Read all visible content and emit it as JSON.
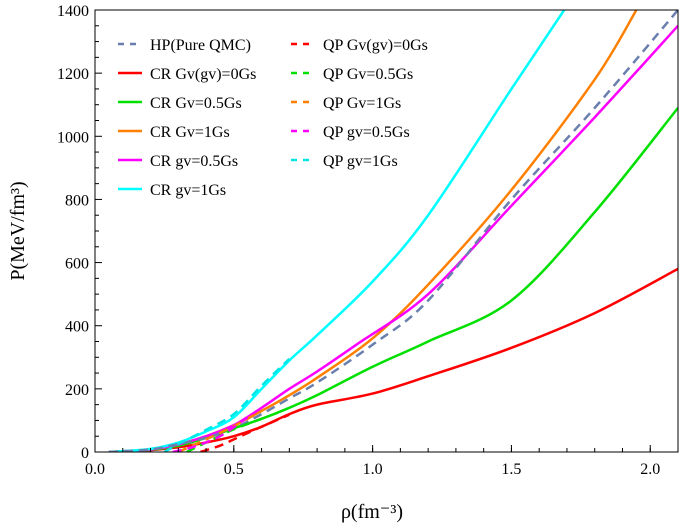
{
  "chart_data": {
    "type": "line",
    "xlabel": "ρ(fm⁻³)",
    "ylabel": "P(MeV/fm³)",
    "xlim": [
      0,
      2.1
    ],
    "ylim": [
      0,
      1400
    ],
    "xticks": [
      "0.0",
      "0.5",
      "1.0",
      "1.5",
      "2.0"
    ],
    "yticks": [
      "0",
      "200",
      "400",
      "600",
      "800",
      "1000",
      "1200",
      "1400"
    ],
    "grid": false,
    "legend_placement": "top-left",
    "series": [
      {
        "name": "HP(Pure QMC)",
        "color": "#6b7fae",
        "dash": true,
        "x": [
          0.05,
          0.2,
          0.3,
          0.4,
          0.5,
          0.6,
          0.7,
          0.8,
          1.0,
          1.2,
          1.5,
          1.8,
          2.1
        ],
        "y": [
          0,
          8,
          25,
          45,
          75,
          120,
          170,
          220,
          340,
          480,
          800,
          1090,
          1400
        ]
      },
      {
        "name": "CR Gv(gv)=0Gs",
        "color": "#ff0000",
        "dash": false,
        "x": [
          0.05,
          0.2,
          0.3,
          0.4,
          0.5,
          0.6,
          0.7,
          0.8,
          1.0,
          1.2,
          1.5,
          1.8,
          2.1
        ],
        "y": [
          0,
          6,
          15,
          30,
          50,
          80,
          120,
          150,
          185,
          240,
          330,
          440,
          580
        ]
      },
      {
        "name": "CR Gv=0.5Gs",
        "color": "#00e000",
        "dash": false,
        "x": [
          0.05,
          0.2,
          0.3,
          0.4,
          0.5,
          0.6,
          0.7,
          0.8,
          1.0,
          1.2,
          1.5,
          1.8,
          2.1
        ],
        "y": [
          0,
          7,
          20,
          45,
          75,
          105,
          140,
          180,
          270,
          350,
          480,
          760,
          1090
        ]
      },
      {
        "name": "CR Gv=1Gs",
        "color": "#ff8000",
        "dash": false,
        "x": [
          0.05,
          0.2,
          0.3,
          0.4,
          0.5,
          0.6,
          0.7,
          0.8,
          1.0,
          1.2,
          1.5,
          1.8,
          1.95
        ],
        "y": [
          0,
          8,
          24,
          50,
          85,
          130,
          180,
          235,
          360,
          530,
          830,
          1180,
          1400
        ]
      },
      {
        "name": "CR gv=0.5Gs",
        "color": "#ff00ff",
        "dash": false,
        "x": [
          0.05,
          0.2,
          0.3,
          0.4,
          0.5,
          0.6,
          0.7,
          0.8,
          0.95,
          1.2,
          1.5,
          1.8,
          2.1
        ],
        "y": [
          0,
          8,
          24,
          50,
          85,
          140,
          200,
          255,
          345,
          500,
          780,
          1060,
          1350
        ]
      },
      {
        "name": "CR gv=1Gs",
        "color": "#00ffff",
        "dash": false,
        "x": [
          0.05,
          0.2,
          0.3,
          0.4,
          0.5,
          0.6,
          0.7,
          0.8,
          1.0,
          1.2,
          1.5,
          1.69
        ],
        "y": [
          0,
          10,
          30,
          65,
          110,
          200,
          290,
          370,
          540,
          750,
          1150,
          1400
        ]
      },
      {
        "name": "QP Gv(gv)=0Gs",
        "color": "#ff0000",
        "dash": true,
        "x": [
          0.38,
          0.45,
          0.5,
          0.6,
          0.7
        ],
        "y": [
          0,
          20,
          40,
          80,
          118
        ]
      },
      {
        "name": "QP Gv=0.5Gs",
        "color": "#00e000",
        "dash": true,
        "x": [
          0.33,
          0.4,
          0.5,
          0.6
        ],
        "y": [
          0,
          30,
          72,
          105
        ]
      },
      {
        "name": "QP Gv=1Gs",
        "color": "#ff8000",
        "dash": true,
        "x": [
          0.3,
          0.4,
          0.5,
          0.6
        ],
        "y": [
          0,
          40,
          82,
          130
        ]
      },
      {
        "name": "QP gv=0.5Gs",
        "color": "#ff00ff",
        "dash": true,
        "x": [
          0.28,
          0.35,
          0.45,
          0.55
        ],
        "y": [
          0,
          15,
          50,
          110
        ]
      },
      {
        "name": "QP gv=1Gs",
        "color": "#00e5e5",
        "dash": true,
        "x": [
          0.25,
          0.3,
          0.4,
          0.5,
          0.6,
          0.7
        ],
        "y": [
          0,
          25,
          70,
          120,
          210,
          295
        ]
      }
    ]
  }
}
